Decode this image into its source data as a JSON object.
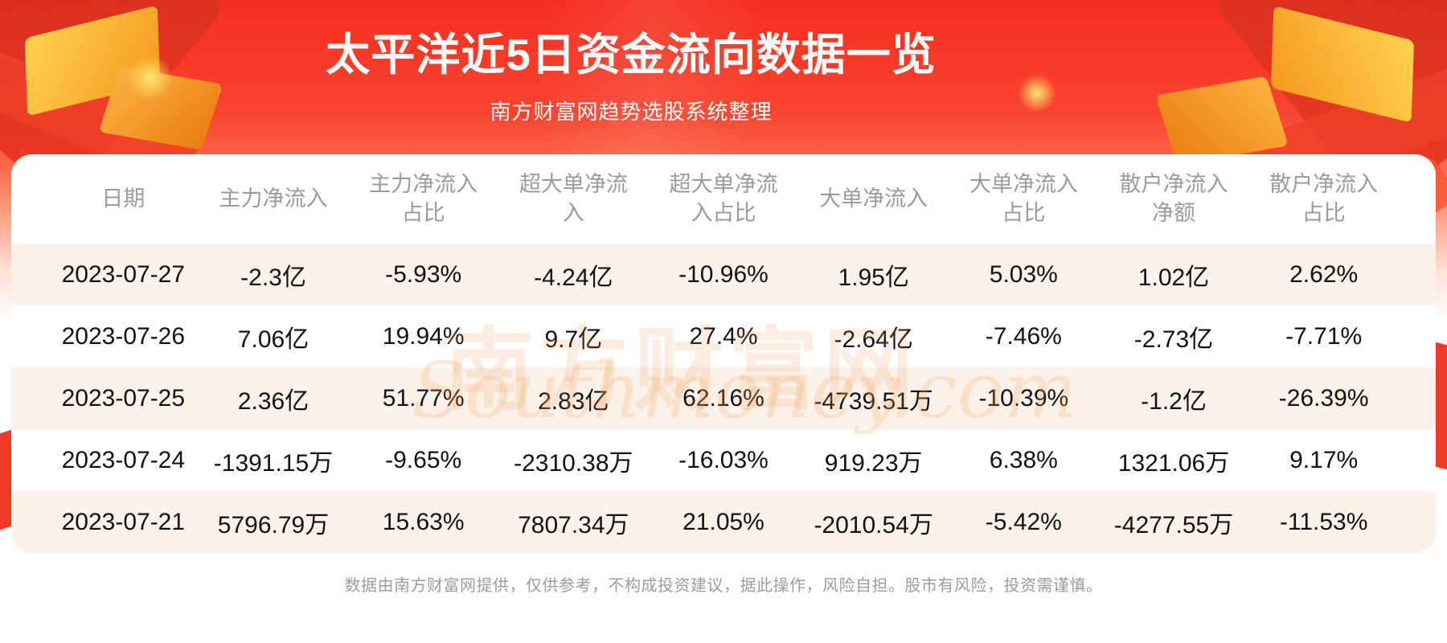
{
  "header": {
    "title": "太平洋近5日资金流向数据一览",
    "subtitle": "南方财富网趋势选股系统整理"
  },
  "chart_data": {
    "type": "table",
    "title": "太平洋近5日资金流向数据一览",
    "subtitle": "南方财富网趋势选股系统整理",
    "columns": [
      "日期",
      "主力净流入",
      "主力净流入占比",
      "超大单净流入",
      "超大单净流入占比",
      "大单净流入",
      "大单净流入占比",
      "散户净流入净额",
      "散户净流入占比"
    ],
    "rows": [
      [
        "2023-07-27",
        "-2.3亿",
        "-5.93%",
        "-4.24亿",
        "-10.96%",
        "1.95亿",
        "5.03%",
        "1.02亿",
        "2.62%"
      ],
      [
        "2023-07-26",
        "7.06亿",
        "19.94%",
        "9.7亿",
        "27.4%",
        "-2.64亿",
        "-7.46%",
        "-2.73亿",
        "-7.71%"
      ],
      [
        "2023-07-25",
        "2.36亿",
        "51.77%",
        "2.83亿",
        "62.16%",
        "-4739.51万",
        "-10.39%",
        "-1.2亿",
        "-26.39%"
      ],
      [
        "2023-07-24",
        "-1391.15万",
        "-9.65%",
        "-2310.38万",
        "-16.03%",
        "919.23万",
        "6.38%",
        "1321.06万",
        "9.17%"
      ],
      [
        "2023-07-21",
        "5796.79万",
        "15.63%",
        "7807.34万",
        "21.05%",
        "-2010.54万",
        "-5.42%",
        "-4277.55万",
        "-11.53%"
      ]
    ]
  },
  "watermark": {
    "cn": "南方财富网",
    "en": "Southmoney.com"
  },
  "footer": {
    "disclaimer": "数据由南方财富网提供，仅供参考，不构成投资建议，据此操作，风险自担。股市有风险，投资需谨慎。"
  },
  "colors": {
    "banner_red": "#f94530",
    "row_stripe": "#fcf2ea",
    "header_text": "#9b9b9b",
    "data_text": "#121212",
    "footer_text": "#9c9c9c",
    "gold_accent": "#f49a1d"
  }
}
